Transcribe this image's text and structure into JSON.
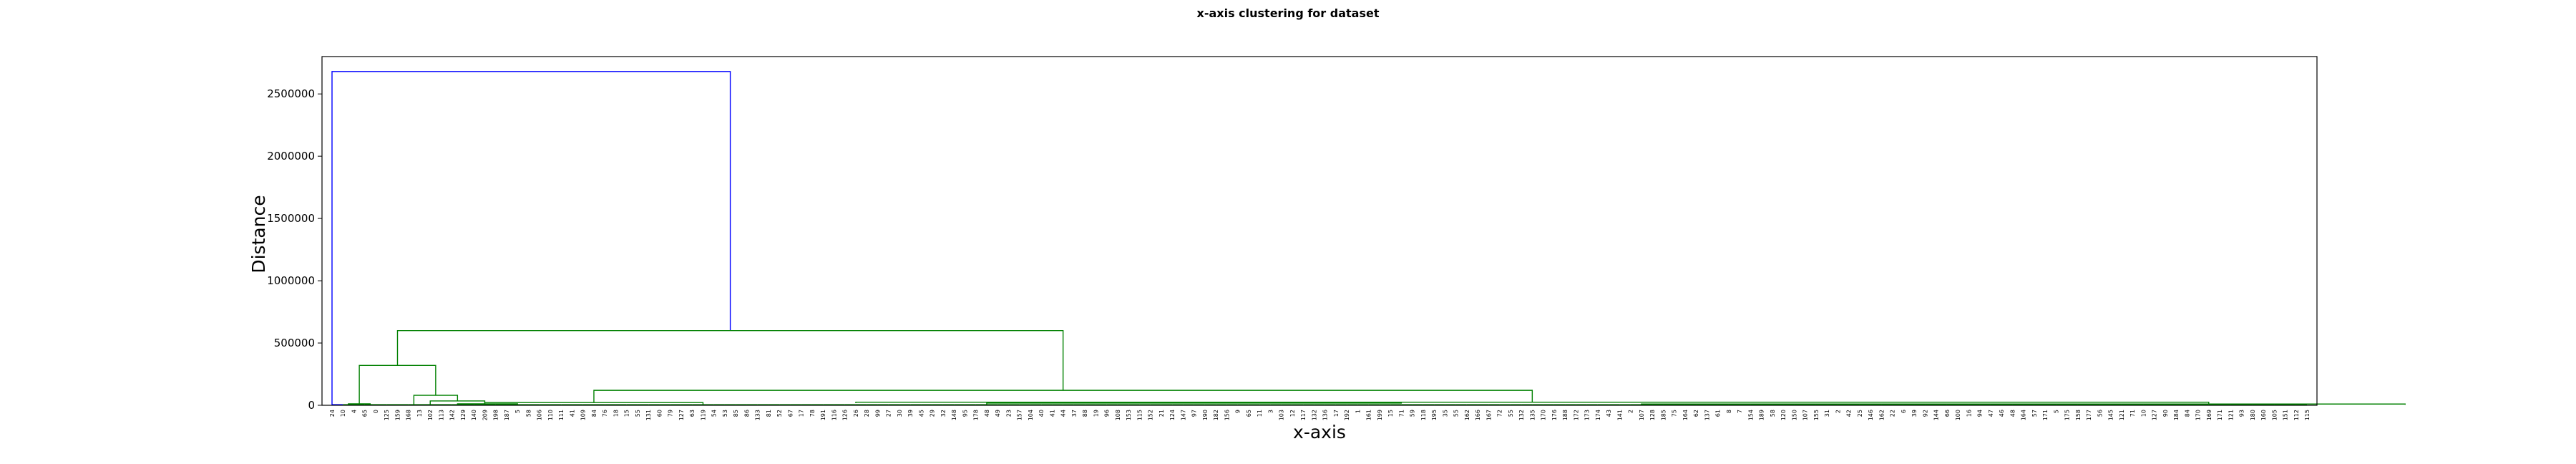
{
  "chart_data": {
    "type": "dendrogram",
    "title": "x-axis clustering for dataset",
    "xlabel": "x-axis",
    "ylabel": "Distance",
    "ylim": [
      0,
      2800000
    ],
    "yticks": [
      0,
      500000,
      1000000,
      1500000,
      2000000,
      2500000
    ],
    "ytick_labels": [
      "0",
      "500000",
      "1000000",
      "1500000",
      "2000000",
      "2500000"
    ],
    "grid": false,
    "colors": {
      "above_threshold": "#0000ff",
      "cluster": "#008000",
      "axes": "#000000"
    },
    "leaves": [
      "24",
      "10",
      "4",
      "65",
      "0",
      "125",
      "159",
      "168",
      "13",
      "102",
      "113",
      "142",
      "129",
      "140",
      "209",
      "198",
      "187",
      "5",
      "58",
      "106",
      "110",
      "111",
      "41",
      "109",
      "84",
      "76",
      "18",
      "15",
      "55",
      "131",
      "60",
      "79",
      "127",
      "63",
      "119",
      "54",
      "53",
      "85",
      "86",
      "133",
      "81",
      "52",
      "67",
      "17",
      "78",
      "191",
      "116",
      "126",
      "26",
      "28",
      "99",
      "27",
      "30",
      "39",
      "45",
      "29",
      "32",
      "148",
      "95",
      "178",
      "48",
      "49",
      "23",
      "157",
      "104",
      "40",
      "41",
      "44",
      "37",
      "88",
      "19",
      "96",
      "108",
      "153",
      "115",
      "152",
      "21",
      "124",
      "147",
      "97",
      "190",
      "182",
      "156",
      "9",
      "65",
      "11",
      "3",
      "103",
      "12",
      "117",
      "132",
      "136",
      "17",
      "192",
      "1",
      "161",
      "199",
      "15",
      "71",
      "59",
      "118",
      "195",
      "35",
      "55",
      "162",
      "166",
      "167",
      "72",
      "55",
      "132",
      "135",
      "170",
      "176",
      "188",
      "172",
      "173",
      "174",
      "43",
      "141",
      "2",
      "107",
      "128",
      "185",
      "75",
      "164",
      "62",
      "137",
      "61",
      "8",
      "7",
      "154",
      "189",
      "58",
      "120",
      "150",
      "107",
      "155",
      "31",
      "2",
      "42",
      "25",
      "146",
      "162",
      "22",
      "6",
      "39",
      "92",
      "144",
      "66",
      "100",
      "16",
      "94",
      "47",
      "46",
      "48",
      "164",
      "57",
      "171",
      "5",
      "175",
      "158",
      "177",
      "56",
      "145",
      "121",
      "71",
      "10",
      "127",
      "90",
      "184",
      "84",
      "170",
      "169",
      "171",
      "121",
      "93",
      "180",
      "160",
      "105",
      "151",
      "112",
      "115"
    ],
    "merges": [
      {
        "x": [
          0.0,
          0.0,
          1.0,
          1.0
        ],
        "y": [
          0,
          2680000,
          2680000,
          600000
        ]
      },
      {
        "x": [
          0.1,
          0.1,
          2.0,
          2.0
        ],
        "y": [
          0,
          0,
          0,
          0
        ]
      },
      {
        "x": [
          0.14,
          0.14,
          0.65,
          0.65
        ],
        "y": [
          600000,
          600000,
          600000,
          600000
        ]
      },
      {
        "x": [
          0.14,
          0.14,
          2.25,
          2.25
        ],
        "y": [
          320000,
          600000,
          600000,
          120000
        ]
      },
      {
        "x": [
          1.0,
          1.0,
          0.8,
          0.8
        ],
        "y": [
          0,
          0,
          0,
          0
        ]
      }
    ]
  }
}
